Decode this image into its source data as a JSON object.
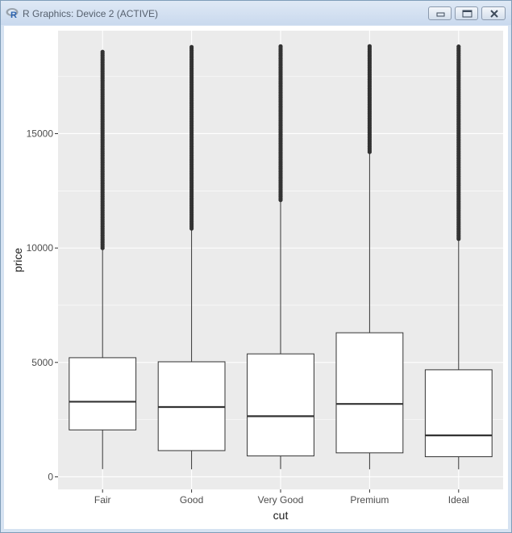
{
  "window": {
    "title": "R Graphics: Device 2 (ACTIVE)",
    "app_icon": "r-logo-icon",
    "buttons": [
      "minimize-icon",
      "maximize-icon",
      "close-icon"
    ]
  },
  "chart_data": {
    "type": "boxplot",
    "xlabel": "cut",
    "ylabel": "price",
    "categories": [
      "Fair",
      "Good",
      "Very Good",
      "Premium",
      "Ideal"
    ],
    "ylim": [
      -550,
      19500
    ],
    "yticks": [
      0,
      5000,
      10000,
      15000
    ],
    "ytick_labels": [
      "0",
      "5000",
      "10000",
      "15000"
    ],
    "grid": true,
    "panel_background": "#ebebeb",
    "box_fill": "#ffffff",
    "line_color": "#333333",
    "boxes": [
      {
        "category": "Fair",
        "min": 337,
        "q1": 2050,
        "median": 3282,
        "q3": 5206,
        "whisker_high": 9950,
        "outliers_from": 10000,
        "outliers_to": 18574
      },
      {
        "category": "Good",
        "min": 327,
        "q1": 1145,
        "median": 3050,
        "q3": 5028,
        "whisker_high": 10800,
        "outliers_from": 10850,
        "outliers_to": 18788
      },
      {
        "category": "Very Good",
        "min": 336,
        "q1": 912,
        "median": 2648,
        "q3": 5373,
        "whisker_high": 12050,
        "outliers_from": 12100,
        "outliers_to": 18818
      },
      {
        "category": "Premium",
        "min": 326,
        "q1": 1046,
        "median": 3185,
        "q3": 6296,
        "whisker_high": 14150,
        "outliers_from": 14200,
        "outliers_to": 18823
      },
      {
        "category": "Ideal",
        "min": 326,
        "q1": 878,
        "median": 1810,
        "q3": 4678,
        "whisker_high": 10350,
        "outliers_from": 10400,
        "outliers_to": 18806
      }
    ]
  }
}
